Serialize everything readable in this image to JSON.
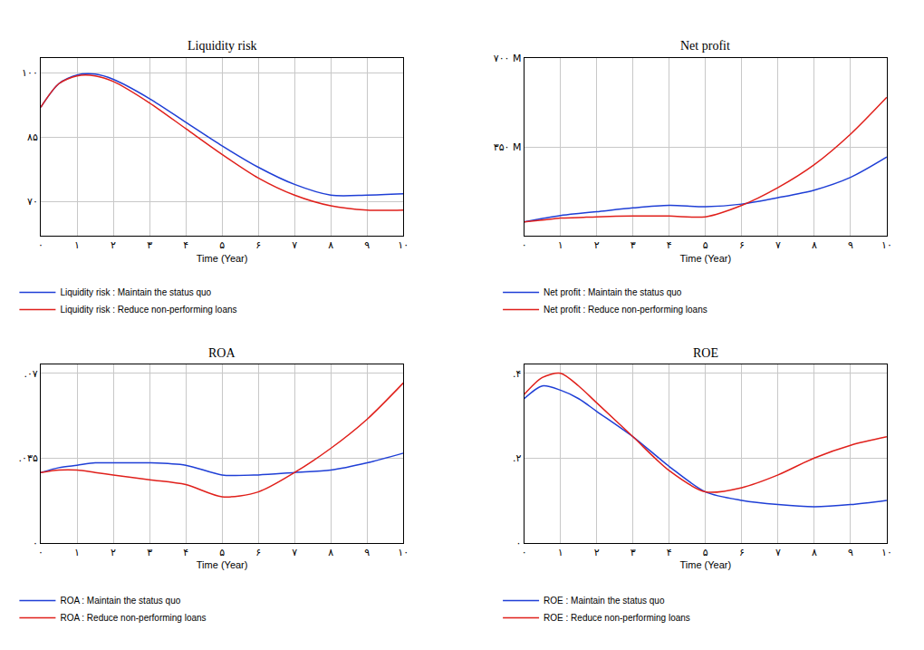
{
  "chart_data": [
    {
      "type": "line",
      "title": "Liquidity risk",
      "x_label": "Time (Year)",
      "x": [
        0,
        0.5,
        1,
        1.5,
        2,
        3,
        4,
        5,
        6,
        7,
        8,
        9,
        10
      ],
      "xlim": [
        0,
        10
      ],
      "xticks": [
        {
          "value": 0,
          "label": "۰"
        },
        {
          "value": 1,
          "label": "۱"
        },
        {
          "value": 2,
          "label": "۲"
        },
        {
          "value": 3,
          "label": "۳"
        },
        {
          "value": 4,
          "label": "۴"
        },
        {
          "value": 5,
          "label": "۵"
        },
        {
          "value": 6,
          "label": "۶"
        },
        {
          "value": 7,
          "label": "۷"
        },
        {
          "value": 8,
          "label": "۸"
        },
        {
          "value": 9,
          "label": "۹"
        },
        {
          "value": 10,
          "label": "۱۰"
        }
      ],
      "ylim": [
        62,
        103.5
      ],
      "yticks": [
        {
          "value": 70,
          "label": "۷۰"
        },
        {
          "value": 85,
          "label": "۸۵"
        },
        {
          "value": 100,
          "label": "۱۰۰"
        }
      ],
      "grid": true,
      "legend": "bottom",
      "series": [
        {
          "name": "Liquidity risk : Maintain the status quo",
          "color": "#1f3fd6",
          "values": [
            92,
            97.5,
            99.5,
            99.7,
            98.5,
            94,
            88.5,
            83,
            78,
            74,
            71.5,
            71.5,
            71.8
          ]
        },
        {
          "name": "Liquidity risk : Reduce non-performing loans",
          "color": "#e0201b",
          "values": [
            92,
            97.5,
            99.3,
            99.3,
            98,
            93,
            87,
            81,
            75.5,
            71.5,
            69,
            68,
            68
          ]
        }
      ]
    },
    {
      "type": "line",
      "title": "Net profit",
      "x_label": "Time (Year)",
      "x": [
        0,
        0.5,
        1,
        1.5,
        2,
        3,
        4,
        5,
        6,
        7,
        8,
        9,
        10
      ],
      "xlim": [
        0,
        10
      ],
      "xticks": [
        {
          "value": 0,
          "label": "۰"
        },
        {
          "value": 1,
          "label": "۱"
        },
        {
          "value": 2,
          "label": "۲"
        },
        {
          "value": 3,
          "label": "۳"
        },
        {
          "value": 4,
          "label": "۴"
        },
        {
          "value": 5,
          "label": "۵"
        },
        {
          "value": 6,
          "label": "۶"
        },
        {
          "value": 7,
          "label": "۷"
        },
        {
          "value": 8,
          "label": "۸"
        },
        {
          "value": 9,
          "label": "۹"
        },
        {
          "value": 10,
          "label": "۱۰"
        }
      ],
      "ylim": [
        0,
        700000000
      ],
      "yticks": [
        {
          "value": 350000000,
          "label": "۳۵۰ M"
        },
        {
          "value": 700000000,
          "label": "۷۰۰ M"
        }
      ],
      "grid": true,
      "legend": "bottom",
      "series": [
        {
          "name": "Net profit : Maintain the status quo",
          "color": "#1f3fd6",
          "values": [
            55000000,
            68000000,
            80000000,
            88000000,
            95000000,
            110000000,
            120000000,
            115000000,
            125000000,
            150000000,
            180000000,
            230000000,
            310000000
          ]
        },
        {
          "name": "Net profit : Reduce non-performing loans",
          "color": "#e0201b",
          "values": [
            55000000,
            62000000,
            70000000,
            72000000,
            75000000,
            78000000,
            78000000,
            75000000,
            120000000,
            190000000,
            280000000,
            400000000,
            545000000
          ]
        }
      ]
    },
    {
      "type": "line",
      "title": "ROA",
      "x_label": "Time (Year)",
      "x": [
        0,
        0.5,
        1,
        1.5,
        2,
        3,
        4,
        5,
        6,
        7,
        8,
        9,
        10
      ],
      "xlim": [
        0,
        10
      ],
      "xticks": [
        {
          "value": 0,
          "label": "۰"
        },
        {
          "value": 1,
          "label": "۱"
        },
        {
          "value": 2,
          "label": "۲"
        },
        {
          "value": 3,
          "label": "۳"
        },
        {
          "value": 4,
          "label": "۴"
        },
        {
          "value": 5,
          "label": "۵"
        },
        {
          "value": 6,
          "label": "۶"
        },
        {
          "value": 7,
          "label": "۷"
        },
        {
          "value": 8,
          "label": "۸"
        },
        {
          "value": 9,
          "label": "۹"
        },
        {
          "value": 10,
          "label": "۱۰"
        }
      ],
      "ylim": [
        0,
        0.0735
      ],
      "yticks": [
        {
          "value": 0,
          "label": "۰"
        },
        {
          "value": 0.035,
          "label": ".۰۳۵"
        },
        {
          "value": 0.07,
          "label": ".۰۷"
        }
      ],
      "grid": true,
      "legend": "bottom",
      "series": [
        {
          "name": "ROA : Maintain the status quo",
          "color": "#1f3fd6",
          "values": [
            0.029,
            0.031,
            0.032,
            0.033,
            0.033,
            0.033,
            0.032,
            0.028,
            0.028,
            0.029,
            0.03,
            0.033,
            0.037
          ]
        },
        {
          "name": "ROA : Reduce non-performing loans",
          "color": "#e0201b",
          "values": [
            0.029,
            0.03,
            0.03,
            0.029,
            0.028,
            0.026,
            0.024,
            0.019,
            0.021,
            0.029,
            0.039,
            0.051,
            0.066
          ]
        }
      ]
    },
    {
      "type": "line",
      "title": "ROE",
      "x_label": "Time (Year)",
      "x": [
        0,
        0.5,
        1,
        1.5,
        2,
        3,
        4,
        5,
        6,
        7,
        8,
        9,
        10
      ],
      "xlim": [
        0,
        10
      ],
      "xticks": [
        {
          "value": 0,
          "label": "۰"
        },
        {
          "value": 1,
          "label": "۱"
        },
        {
          "value": 2,
          "label": "۲"
        },
        {
          "value": 3,
          "label": "۳"
        },
        {
          "value": 4,
          "label": "۴"
        },
        {
          "value": 5,
          "label": "۵"
        },
        {
          "value": 6,
          "label": "۶"
        },
        {
          "value": 7,
          "label": "۷"
        },
        {
          "value": 8,
          "label": "۸"
        },
        {
          "value": 9,
          "label": "۹"
        },
        {
          "value": 10,
          "label": "۱۰"
        }
      ],
      "ylim": [
        0,
        0.42
      ],
      "yticks": [
        {
          "value": 0,
          "label": "۰"
        },
        {
          "value": 0.2,
          "label": ".۲"
        },
        {
          "value": 0.4,
          "label": ".۴"
        }
      ],
      "grid": true,
      "legend": "bottom",
      "series": [
        {
          "name": "ROE : Maintain the status quo",
          "color": "#1f3fd6",
          "values": [
            0.34,
            0.37,
            0.36,
            0.34,
            0.31,
            0.25,
            0.18,
            0.12,
            0.1,
            0.09,
            0.085,
            0.09,
            0.1
          ]
        },
        {
          "name": "ROE : Reduce non-performing loans",
          "color": "#e0201b",
          "values": [
            0.35,
            0.39,
            0.4,
            0.37,
            0.33,
            0.25,
            0.17,
            0.12,
            0.13,
            0.16,
            0.2,
            0.23,
            0.25
          ]
        }
      ]
    }
  ]
}
